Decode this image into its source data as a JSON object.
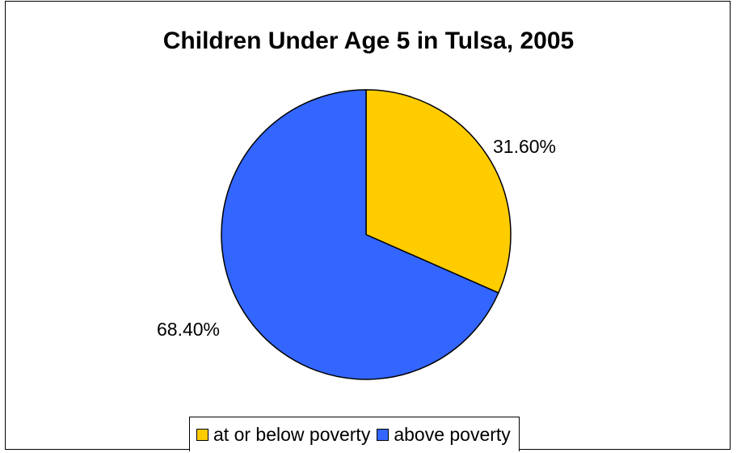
{
  "chart_data": {
    "type": "pie",
    "title": "Children Under Age 5 in Tulsa, 2005",
    "categories": [
      "at or below poverty",
      "above poverty"
    ],
    "values": [
      31.6,
      68.4
    ],
    "data_labels": [
      "31.60%",
      "68.40%"
    ],
    "colors": [
      "#ffcc00",
      "#3366ff"
    ],
    "legend_position": "bottom"
  }
}
